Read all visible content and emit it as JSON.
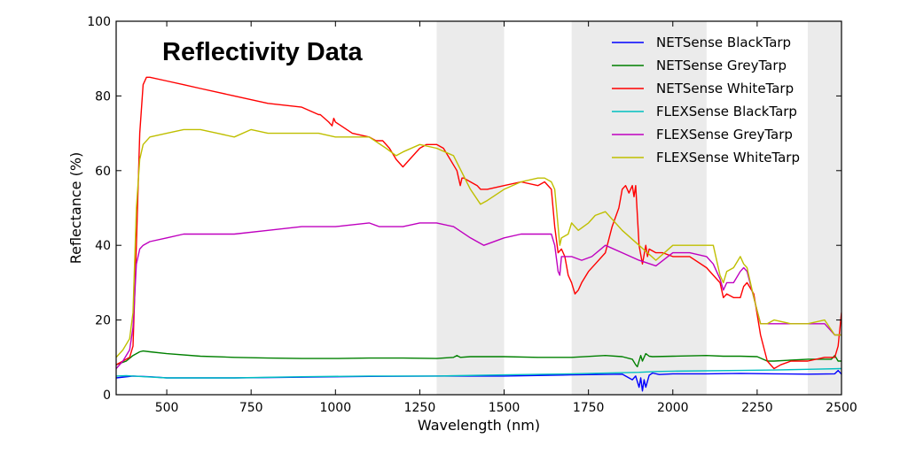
{
  "chart_data": {
    "type": "line",
    "title": "Reflectivity Data",
    "xlabel": "Wavelength (nm)",
    "ylabel": "Reflectance (%)",
    "xlim": [
      350,
      2500
    ],
    "ylim": [
      0,
      100
    ],
    "xticks": [
      500,
      750,
      1000,
      1250,
      1500,
      1750,
      2000,
      2250,
      2500
    ],
    "yticks": [
      0,
      20,
      40,
      60,
      80,
      100
    ],
    "grid": false,
    "legend_position": "top-right",
    "shaded_bands": [
      [
        1300,
        1500
      ],
      [
        1700,
        2100
      ],
      [
        2400,
        2500
      ]
    ],
    "band_color": "#ebebeb",
    "series": [
      {
        "name": "NETSense BlackTarp",
        "color": "#0000ff",
        "x": [
          350,
          400,
          450,
          500,
          700,
          900,
          1100,
          1300,
          1500,
          1700,
          1850,
          1880,
          1890,
          1900,
          1905,
          1910,
          1915,
          1920,
          1930,
          1940,
          1960,
          2000,
          2100,
          2200,
          2300,
          2400,
          2480,
          2490,
          2500
        ],
        "y": [
          4.5,
          5.0,
          4.8,
          4.5,
          4.5,
          4.7,
          4.9,
          5.0,
          5.0,
          5.3,
          5.5,
          4.0,
          5.0,
          2.0,
          4.5,
          1.0,
          4.0,
          2.0,
          5.2,
          5.8,
          5.4,
          5.6,
          5.6,
          5.7,
          5.6,
          5.5,
          5.6,
          6.5,
          5.5
        ]
      },
      {
        "name": "NETSense GreyTarp",
        "color": "#008000",
        "x": [
          350,
          380,
          400,
          420,
          430,
          450,
          500,
          600,
          700,
          800,
          900,
          1000,
          1100,
          1200,
          1300,
          1350,
          1360,
          1370,
          1400,
          1500,
          1600,
          1700,
          1800,
          1850,
          1880,
          1890,
          1895,
          1905,
          1910,
          1920,
          1930,
          1940,
          2000,
          2100,
          2150,
          2200,
          2250,
          2280,
          2300,
          2400,
          2470,
          2480,
          2490,
          2500
        ],
        "y": [
          8.0,
          9.0,
          10.5,
          11.5,
          11.7,
          11.5,
          11.0,
          10.3,
          10.0,
          9.8,
          9.7,
          9.7,
          9.8,
          9.8,
          9.7,
          10.0,
          10.5,
          10.0,
          10.2,
          10.2,
          10.0,
          10.0,
          10.5,
          10.2,
          9.5,
          8.0,
          7.5,
          10.5,
          9.0,
          11.0,
          10.3,
          10.2,
          10.3,
          10.5,
          10.3,
          10.3,
          10.2,
          9.0,
          9.0,
          9.5,
          9.5,
          10.5,
          9.0,
          9.0
        ]
      },
      {
        "name": "NETSense WhiteTarp",
        "color": "#ff0000",
        "x": [
          350,
          370,
          390,
          400,
          410,
          420,
          430,
          440,
          450,
          500,
          550,
          600,
          650,
          700,
          800,
          900,
          950,
          955,
          980,
          990,
          995,
          1000,
          1050,
          1100,
          1120,
          1140,
          1160,
          1180,
          1190,
          1200,
          1220,
          1250,
          1270,
          1300,
          1320,
          1340,
          1360,
          1370,
          1375,
          1380,
          1400,
          1420,
          1430,
          1450,
          1500,
          1550,
          1600,
          1620,
          1640,
          1650,
          1660,
          1670,
          1680,
          1690,
          1700,
          1710,
          1720,
          1730,
          1750,
          1770,
          1800,
          1820,
          1840,
          1850,
          1860,
          1870,
          1880,
          1885,
          1890,
          1900,
          1910,
          1920,
          1925,
          1930,
          1950,
          1970,
          2000,
          2050,
          2100,
          2120,
          2140,
          2150,
          2160,
          2180,
          2200,
          2210,
          2220,
          2240,
          2260,
          2280,
          2300,
          2320,
          2350,
          2400,
          2450,
          2480,
          2490,
          2500
        ],
        "y": [
          8,
          9,
          10,
          13,
          40,
          70,
          83,
          85,
          85,
          84,
          83,
          82,
          81,
          80,
          78,
          77,
          75,
          75,
          73,
          72,
          74,
          73,
          70,
          69,
          68,
          68,
          66,
          63,
          62,
          61,
          63,
          66,
          67,
          67,
          66,
          63,
          60,
          56,
          58,
          58,
          57,
          56,
          55,
          55,
          56,
          57,
          56,
          57,
          55,
          45,
          38,
          39,
          37,
          32,
          30,
          27,
          28,
          30,
          33,
          35,
          38,
          45,
          50,
          55,
          56,
          54,
          56,
          53,
          56,
          40,
          35,
          40,
          37,
          39,
          38,
          38,
          37,
          37,
          34,
          32,
          30,
          26,
          27,
          26,
          26,
          29,
          30,
          27,
          16,
          9,
          7,
          8,
          9,
          9,
          10,
          10,
          13,
          22
        ]
      },
      {
        "name": "FLEXSense BlackTarp",
        "color": "#00bfbf",
        "x": [
          350,
          380,
          400,
          500,
          700,
          900,
          1100,
          1300,
          1500,
          1700,
          1900,
          1950,
          2000,
          2100,
          2200,
          2300,
          2400,
          2500
        ],
        "y": [
          5,
          5.1,
          5.0,
          4.5,
          4.5,
          4.8,
          5.0,
          5.0,
          5.3,
          5.6,
          6.0,
          6.2,
          6.3,
          6.4,
          6.5,
          6.6,
          6.8,
          7.0
        ]
      },
      {
        "name": "FLEXSense GreyTarp",
        "color": "#bf00bf",
        "x": [
          350,
          370,
          390,
          400,
          410,
          420,
          430,
          450,
          500,
          550,
          600,
          700,
          800,
          900,
          1000,
          1100,
          1130,
          1150,
          1200,
          1250,
          1300,
          1350,
          1400,
          1440,
          1500,
          1550,
          1600,
          1640,
          1650,
          1660,
          1665,
          1670,
          1690,
          1700,
          1730,
          1760,
          1800,
          1850,
          1900,
          1950,
          2000,
          2050,
          2100,
          2120,
          2140,
          2150,
          2160,
          2180,
          2200,
          2210,
          2220,
          2240,
          2260,
          2280,
          2300,
          2350,
          2400,
          2450,
          2480,
          2490,
          2500
        ],
        "y": [
          7,
          9,
          12,
          18,
          35,
          39,
          40,
          41,
          42,
          43,
          43,
          43,
          44,
          45,
          45,
          46,
          45,
          45,
          45,
          46,
          46,
          45,
          42,
          40,
          42,
          43,
          43,
          43,
          40,
          33,
          32,
          37,
          37,
          37,
          36,
          37,
          40,
          38,
          36,
          34.5,
          38,
          38,
          37,
          35,
          31,
          28,
          30,
          30,
          33,
          34,
          33,
          26,
          19,
          19,
          19,
          19,
          19,
          19,
          16,
          16,
          16
        ]
      },
      {
        "name": "FLEXSense WhiteTarp",
        "color": "#bfbf00",
        "x": [
          350,
          370,
          390,
          400,
          410,
          420,
          430,
          450,
          500,
          550,
          600,
          650,
          700,
          750,
          800,
          900,
          950,
          1000,
          1100,
          1150,
          1180,
          1200,
          1250,
          1300,
          1350,
          1400,
          1430,
          1450,
          1500,
          1550,
          1600,
          1620,
          1640,
          1650,
          1660,
          1665,
          1670,
          1690,
          1700,
          1720,
          1750,
          1770,
          1800,
          1850,
          1900,
          1950,
          2000,
          2050,
          2100,
          2120,
          2140,
          2150,
          2160,
          2180,
          2200,
          2210,
          2220,
          2240,
          2260,
          2280,
          2300,
          2350,
          2400,
          2450,
          2480,
          2490,
          2500
        ],
        "y": [
          10,
          12,
          15,
          22,
          50,
          63,
          67,
          69,
          70,
          71,
          71,
          70,
          69,
          71,
          70,
          70,
          70,
          69,
          69,
          66,
          64,
          65,
          67,
          66,
          64,
          55,
          51,
          52,
          55,
          57,
          58,
          58,
          57,
          55,
          45,
          40,
          42,
          43,
          46,
          44,
          46,
          48,
          49,
          44,
          40,
          36,
          40,
          40,
          40,
          40,
          32,
          30,
          33,
          34,
          37,
          35,
          34,
          26,
          19,
          19,
          20,
          19,
          19,
          20,
          16,
          16,
          16
        ]
      }
    ]
  }
}
